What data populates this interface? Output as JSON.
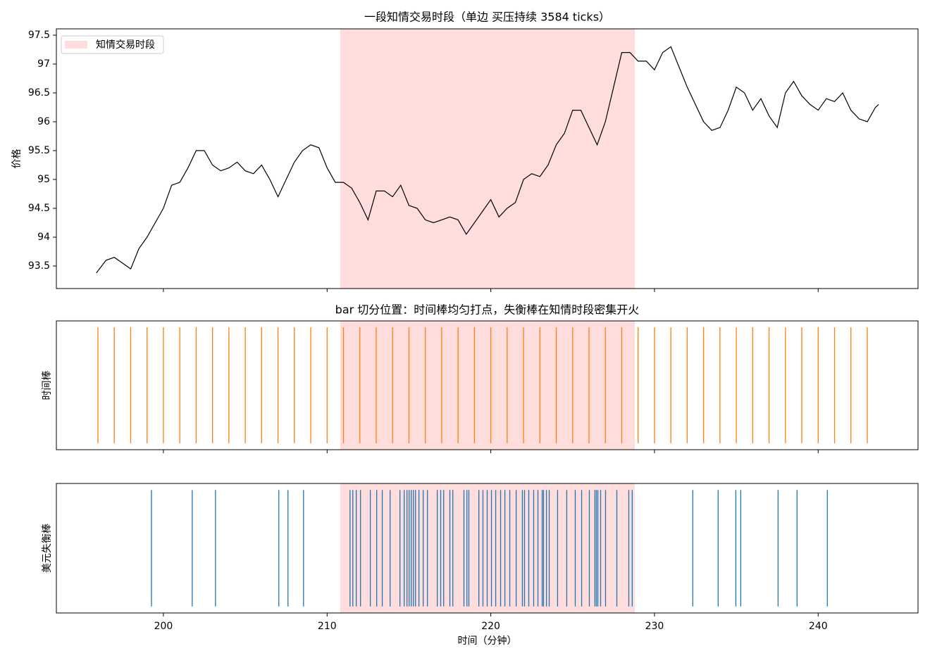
{
  "chart_data": [
    {
      "type": "line",
      "title": "一段知情交易时段（单边 买压持续 3584 ticks）",
      "ylabel": "价格",
      "x": [
        195.9,
        196.5,
        197,
        197.5,
        198,
        198.5,
        199,
        199.5,
        200,
        200.5,
        201,
        201.5,
        202,
        202.5,
        203,
        203.5,
        204,
        204.5,
        205,
        205.5,
        206,
        206.5,
        207,
        207.5,
        208,
        208.5,
        209,
        209.5,
        210,
        210.5,
        211,
        211.5,
        212,
        212.5,
        213,
        213.5,
        214,
        214.5,
        215,
        215.5,
        216,
        216.5,
        217,
        217.5,
        218,
        218.5,
        219,
        219.5,
        220,
        220.5,
        221,
        221.5,
        222,
        222.5,
        223,
        223.5,
        224,
        224.5,
        225,
        225.5,
        226,
        226.5,
        227,
        227.5,
        228,
        228.5,
        229,
        229.5,
        230,
        230.5,
        231,
        231.5,
        232,
        232.5,
        233,
        233.5,
        234,
        234.5,
        235,
        235.5,
        236,
        236.5,
        237,
        237.5,
        238,
        238.5,
        239,
        239.5,
        240,
        240.5,
        241,
        241.5,
        242,
        242.5,
        243,
        243.5,
        243.7
      ],
      "values": [
        93.38,
        93.6,
        93.65,
        93.55,
        93.45,
        93.8,
        94.0,
        94.25,
        94.5,
        94.9,
        94.95,
        95.2,
        95.5,
        95.5,
        95.25,
        95.15,
        95.2,
        95.3,
        95.15,
        95.1,
        95.25,
        95.0,
        94.7,
        95.0,
        95.3,
        95.5,
        95.6,
        95.55,
        95.2,
        94.95,
        94.95,
        94.85,
        94.6,
        94.3,
        94.8,
        94.8,
        94.7,
        94.9,
        94.55,
        94.5,
        94.3,
        94.25,
        94.3,
        94.35,
        94.3,
        94.05,
        94.25,
        94.45,
        94.65,
        94.35,
        94.5,
        94.6,
        95.0,
        95.1,
        95.05,
        95.25,
        95.6,
        95.8,
        96.2,
        96.2,
        95.9,
        95.6,
        96.0,
        96.6,
        97.2,
        97.2,
        97.05,
        97.05,
        96.9,
        97.2,
        97.3,
        96.95,
        96.6,
        96.3,
        96.0,
        95.85,
        95.9,
        96.2,
        96.6,
        96.5,
        96.2,
        96.4,
        96.1,
        95.9,
        96.5,
        96.7,
        96.45,
        96.3,
        96.2,
        96.4,
        96.35,
        96.5,
        96.2,
        96.05,
        96.0,
        96.25,
        96.3
      ],
      "color": "#000000",
      "xlim": [
        193.46,
        246.1
      ],
      "xticks": [
        200,
        210,
        220,
        230,
        240
      ],
      "xtick_labels": false,
      "ylim": [
        93.11,
        97.61
      ],
      "yticks": [
        93.5,
        94.0,
        94.5,
        95.0,
        95.5,
        96.0,
        96.5,
        97.0,
        97.5
      ],
      "highlight": {
        "label": "知情交易时段",
        "range": [
          210.8,
          228.8
        ],
        "color": "#ffdddd"
      },
      "legend": "upper left"
    },
    {
      "type": "eventplot",
      "title": "bar 切分位置：时间棒均匀打点，失衡棒在知情时段密集开火",
      "ylabel": "时间棒",
      "x": [
        196,
        197,
        198,
        199,
        200,
        201,
        202,
        203,
        204,
        205,
        206,
        207,
        208,
        209,
        210,
        211,
        212,
        213,
        214,
        215,
        216,
        217,
        218,
        219,
        220,
        221,
        222,
        223,
        224,
        225,
        226,
        227,
        228,
        229,
        230,
        231,
        232,
        233,
        234,
        235,
        236,
        237,
        238,
        239,
        240,
        241,
        242,
        243
      ],
      "color": "#ff7f0e",
      "xlim": [
        193.46,
        246.1
      ],
      "xticks": [
        200,
        210,
        220,
        230,
        240
      ],
      "xtick_labels": false,
      "highlight": {
        "range": [
          210.8,
          228.8
        ],
        "color": "#ffdddd"
      }
    },
    {
      "type": "eventplot",
      "ylabel": "美元失衡棒",
      "xlabel": "时间（分钟）",
      "x": [
        199.27,
        201.76,
        203.18,
        207.05,
        207.61,
        208.56,
        211.4,
        211.57,
        211.78,
        212.04,
        212.64,
        213.03,
        213.37,
        213.85,
        214.45,
        214.71,
        214.88,
        215.01,
        215.14,
        215.27,
        215.4,
        215.61,
        215.87,
        216.13,
        216.73,
        216.94,
        217.12,
        217.5,
        217.68,
        218.36,
        218.54,
        218.66,
        219.27,
        219.52,
        219.78,
        220.04,
        220.3,
        220.6,
        220.86,
        221.16,
        221.55,
        221.93,
        222.06,
        222.32,
        222.62,
        222.88,
        223.14,
        223.22,
        223.4,
        223.57,
        224.08,
        224.64,
        225.16,
        225.55,
        226.02,
        226.36,
        226.45,
        226.54,
        226.71,
        227.01,
        227.7,
        228.43,
        228.64,
        232.34,
        233.89,
        234.97,
        235.27,
        237.55,
        238.71,
        240.56
      ],
      "color": "#1f77b4",
      "xlim": [
        193.46,
        246.1
      ],
      "xticks": [
        200,
        210,
        220,
        230,
        240
      ],
      "xtick_labels": true,
      "highlight": {
        "range": [
          210.8,
          228.8
        ],
        "color": "#ffdddd"
      }
    }
  ]
}
